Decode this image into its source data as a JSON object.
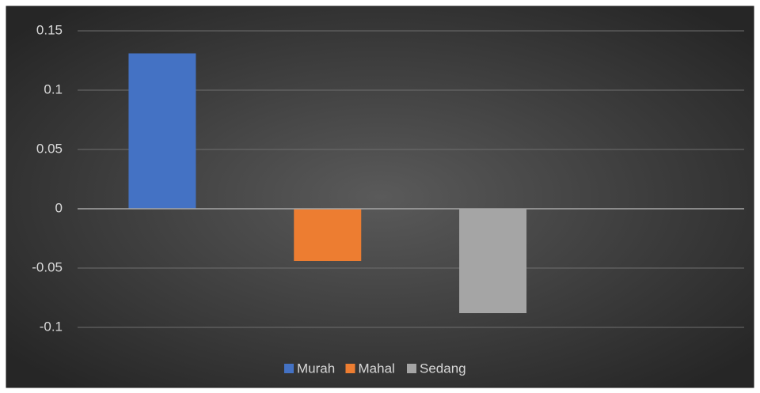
{
  "chart_data": {
    "type": "bar",
    "categories": [
      null
    ],
    "series": [
      {
        "name": "Murah",
        "color": "#4472c4",
        "values": [
          0.131
        ]
      },
      {
        "name": "Mahal",
        "color": "#ed7d31",
        "values": [
          -0.044
        ]
      },
      {
        "name": "Sedang",
        "color": "#a5a5a5",
        "values": [
          -0.088
        ]
      }
    ],
    "ylim": [
      -0.1,
      0.15
    ],
    "yticks": [
      -0.1,
      -0.05,
      0,
      0.05,
      0.1,
      0.15
    ],
    "grid": true,
    "legend": "bottom"
  }
}
